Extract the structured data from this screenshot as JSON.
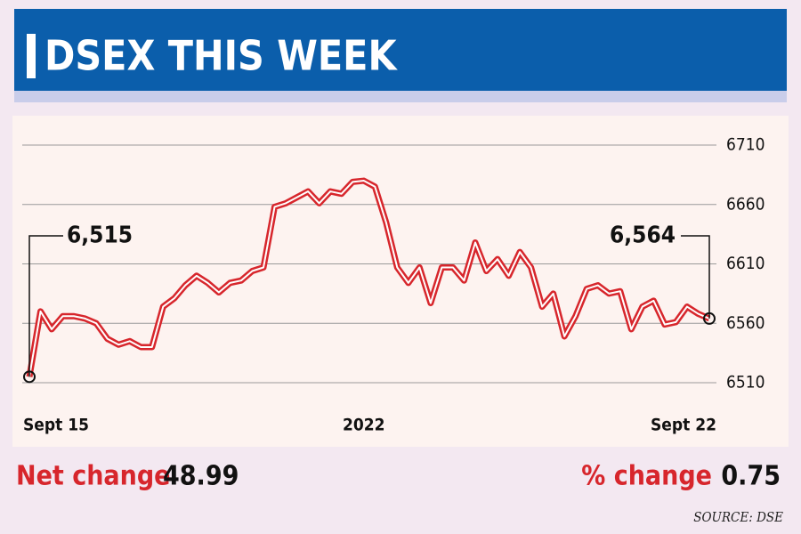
{
  "chart_data": {
    "type": "line",
    "title": "DSEX THIS WEEK",
    "categories": [
      "Sept 15",
      null,
      null,
      null,
      null,
      null,
      null,
      null,
      null,
      null,
      null,
      null,
      null,
      null,
      null,
      null,
      null,
      null,
      null,
      null,
      null,
      null,
      null,
      null,
      null,
      null,
      null,
      null,
      null,
      null,
      "2022",
      null,
      null,
      null,
      null,
      null,
      null,
      null,
      null,
      null,
      null,
      null,
      null,
      null,
      null,
      null,
      null,
      null,
      null,
      null,
      null,
      null,
      null,
      null,
      null,
      null,
      null,
      null,
      null,
      null,
      null,
      "Sept 22"
    ],
    "values": [
      6515,
      6570,
      6555,
      6566,
      6566,
      6564,
      6560,
      6547,
      6542,
      6545,
      6540,
      6540,
      6574,
      6581,
      6592,
      6600,
      6594,
      6586,
      6594,
      6596,
      6604,
      6607,
      6658,
      6661,
      6666,
      6671,
      6661,
      6671,
      6669,
      6679,
      6680,
      6675,
      6645,
      6607,
      6594,
      6607,
      6577,
      6607,
      6607,
      6596,
      6628,
      6604,
      6614,
      6600,
      6620,
      6607,
      6574,
      6585,
      6549,
      6566,
      6589,
      6592,
      6585,
      6587,
      6555,
      6574,
      6579,
      6559,
      6561,
      6574,
      6568,
      6564
    ],
    "value_labels": [
      "6,515",
      null,
      null,
      null,
      null,
      null,
      null,
      null,
      null,
      null,
      null,
      null,
      null,
      null,
      null,
      null,
      null,
      null,
      null,
      null,
      null,
      null,
      null,
      null,
      null,
      null,
      null,
      null,
      null,
      null,
      null,
      null,
      null,
      null,
      null,
      null,
      null,
      null,
      null,
      null,
      null,
      null,
      null,
      null,
      null,
      null,
      null,
      null,
      null,
      null,
      null,
      null,
      null,
      null,
      null,
      null,
      null,
      null,
      null,
      null,
      null,
      "6,564"
    ],
    "color": "#d7262c",
    "ylim": [
      6500,
      6720
    ],
    "yticks": [
      6510,
      6560,
      6610,
      6660,
      6710
    ],
    "grid": true
  },
  "footer": {
    "net_change_label": "Net change",
    "net_change": 48.99,
    "pct_change_label": "% change",
    "pct_change": 0.75,
    "source": "SOURCE: DSE"
  }
}
